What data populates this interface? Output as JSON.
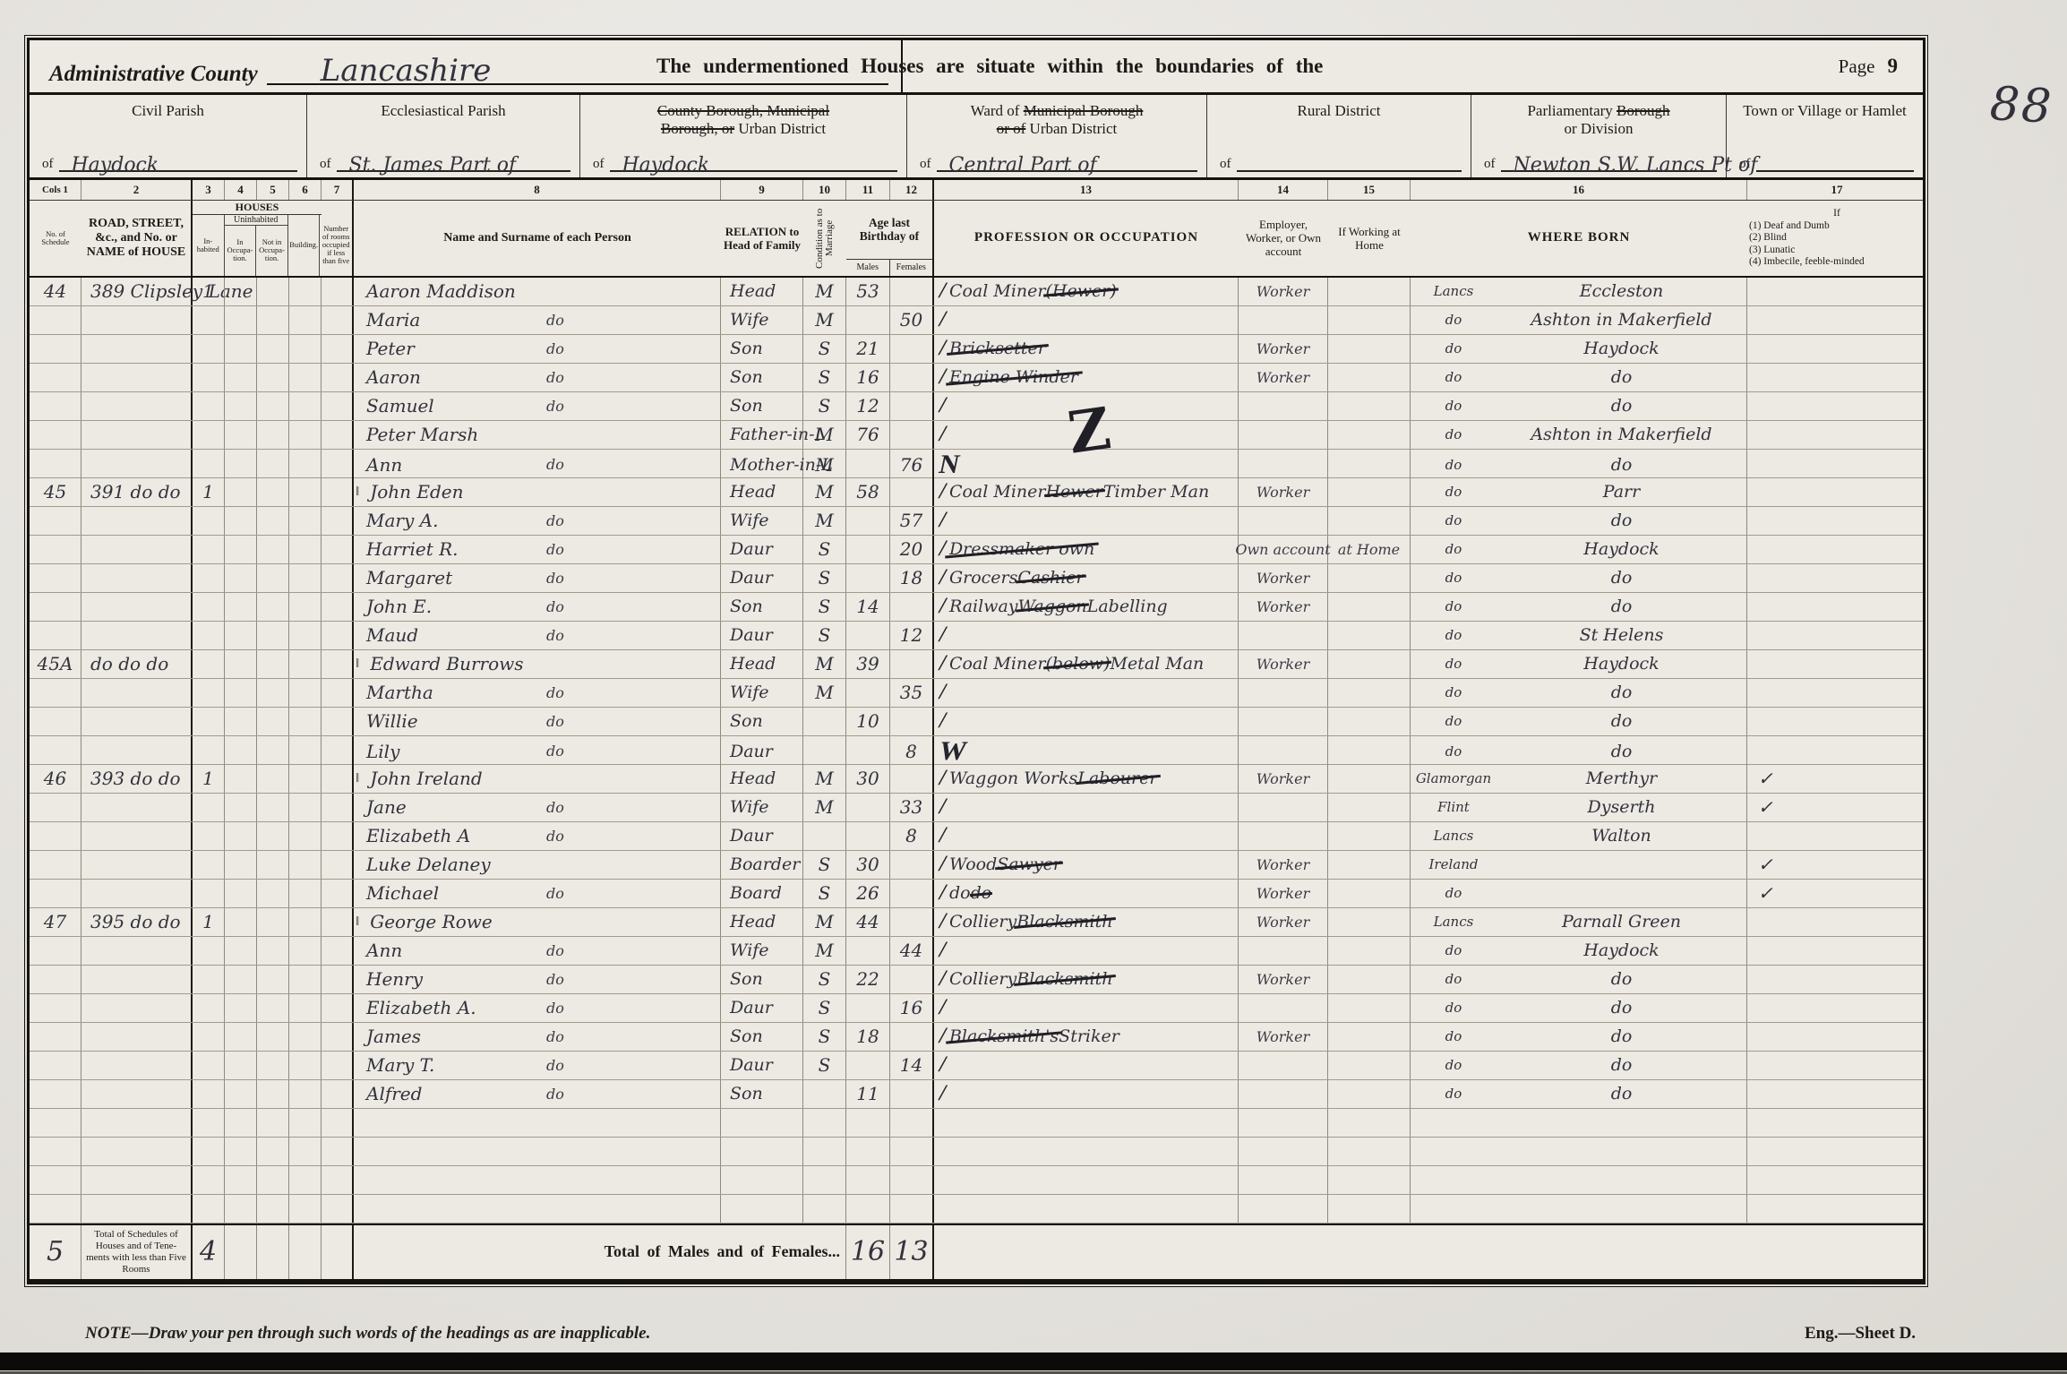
{
  "page": {
    "admin_county_label": "Administrative County",
    "admin_county_value": "Lancashire",
    "center_heading": "The undermentioned Houses are situate within the boundaries of the",
    "page_label": "Page",
    "page_number": "9",
    "stamp_number": "88",
    "of_label": "of",
    "note": "NOTE—Draw your pen through such words of the headings as are inapplicable.",
    "sheet_ref": "Eng.—Sheet D."
  },
  "districts": [
    {
      "lines": [
        [
          {
            "t": "Civil Parish",
            "s": false
          }
        ]
      ],
      "value": "Haydock"
    },
    {
      "lines": [
        [
          {
            "t": "Ecclesiastical Parish",
            "s": false
          }
        ]
      ],
      "value": "St. James Part of"
    },
    {
      "lines": [
        [
          {
            "t": "County Borough, Municipal",
            "s": true
          }
        ],
        [
          {
            "t": "Borough, or",
            "s": true
          },
          {
            "t": " Urban District",
            "s": false
          }
        ]
      ],
      "value": "Haydock"
    },
    {
      "lines": [
        [
          {
            "t": "Ward of ",
            "s": false
          },
          {
            "t": "Municipal Borough",
            "s": true
          }
        ],
        [
          {
            "t": "or of",
            "s": true
          },
          {
            "t": " Urban District",
            "s": false
          }
        ]
      ],
      "value": "Central Part of"
    },
    {
      "lines": [
        [
          {
            "t": "Rural District",
            "s": false
          }
        ]
      ],
      "value": ""
    },
    {
      "lines": [
        [
          {
            "t": "Parliamentary ",
            "s": false
          },
          {
            "t": "Borough",
            "s": true
          }
        ],
        [
          {
            "t": "or Division",
            "s": false
          }
        ]
      ],
      "value": "Newton S.W. Lancs Pt of"
    },
    {
      "lines": [
        [
          {
            "t": "Town or Village or Hamlet",
            "s": false
          }
        ]
      ],
      "value": ""
    }
  ],
  "columns": {
    "nums": [
      "Cols 1",
      "2",
      "3",
      "4",
      "5",
      "6",
      "7",
      "8",
      "9",
      "10",
      "11",
      "12",
      "13",
      "14",
      "15",
      "16",
      "17"
    ],
    "c1": "No. of Schedule",
    "c2": "ROAD, STREET, &c., and No. or NAME of HOUSE",
    "houses": "HOUSES",
    "inhabited": "In-habited",
    "uninhabited": "Uninhabited",
    "in_occupation": "In Occupa-tion.",
    "not_in_occupation": "Not in Occupa-tion.",
    "building": "Building.",
    "c7": "Number of rooms occupied if less than five",
    "c8": "Name and Surname of each Person",
    "c9": "RELATION to Head of Family",
    "c10": "Condition as to Marriage",
    "c11_12": "Age last Birthday of",
    "males": "Males",
    "females": "Females",
    "c13": "PROFESSION OR OCCUPATION",
    "c14": "Employer, Worker, or Own account",
    "c15": "If Working at Home",
    "c16": "WHERE BORN",
    "c17_title": "If",
    "c17_items": [
      "(1) Deaf and Dumb",
      "(2) Blind",
      "(3) Lunatic",
      "(4) Imbecile, feeble-minded"
    ]
  },
  "table": {
    "rows": [
      {
        "sch": "44",
        "street": "389 Clipsley Lane",
        "inh": "1",
        "name": "Aaron Maddison",
        "rel": "Head",
        "cond": "M",
        "am": "53",
        "af": "",
        "tick": "/",
        "occ": [
          {
            "t": "Coal Miner ",
            "s": false
          },
          {
            "t": "(Hewer)",
            "s": true
          }
        ],
        "emp": "Worker",
        "home": "",
        "bc": "Lancs",
        "bp": "Eccleston",
        "inf": ""
      },
      {
        "name": "Maria do",
        "rel": "Wife",
        "cond": "M",
        "af": "50",
        "tick": "/",
        "bc": "do",
        "bp": "Ashton in Makerfield"
      },
      {
        "name": "Peter do",
        "rel": "Son",
        "cond": "S",
        "am": "21",
        "tick": "/",
        "occ": [
          {
            "t": "Bricksetter",
            "s": true
          }
        ],
        "emp": "Worker",
        "bc": "do",
        "bp": "Haydock"
      },
      {
        "name": "Aaron do",
        "rel": "Son",
        "cond": "S",
        "am": "16",
        "tick": "/",
        "occ": [
          {
            "t": "Engine Winder",
            "s": true
          }
        ],
        "emp": "Worker",
        "bc": "do",
        "bp": "do"
      },
      {
        "name": "Samuel do",
        "rel": "Son",
        "cond": "S",
        "am": "12",
        "tick": "/",
        "bc": "do",
        "bp": "do"
      },
      {
        "name": "Peter Marsh",
        "rel": "Father-in-L",
        "cond": "M",
        "am": "76",
        "tick": "/",
        "zmark": true,
        "bc": "do",
        "bp": "Ashton in Makerfield"
      },
      {
        "name": "Ann do",
        "rel": "Mother-in-L",
        "cond": "M",
        "af": "76",
        "tick": "N",
        "bc": "do",
        "bp": "do"
      },
      {
        "sch": "45",
        "street": "391 do do",
        "inh": "1",
        "mark": "‖",
        "name": "John Eden",
        "rel": "Head",
        "cond": "M",
        "am": "58",
        "tick": "/",
        "occ": [
          {
            "t": "Coal Miner ",
            "s": false
          },
          {
            "t": "Hewer",
            "s": true
          },
          {
            "t": " Timber Man",
            "s": false
          }
        ],
        "emp": "Worker",
        "bc": "do",
        "bp": "Parr"
      },
      {
        "name": "Mary A. do",
        "rel": "Wife",
        "cond": "M",
        "af": "57",
        "tick": "/",
        "bc": "do",
        "bp": "do"
      },
      {
        "name": "Harriet R. do",
        "rel": "Daur",
        "cond": "S",
        "af": "20",
        "tick": "/",
        "occ": [
          {
            "t": "Dressmaker own",
            "s": true
          }
        ],
        "emp": "Own account",
        "home": "at Home",
        "bc": "do",
        "bp": "Haydock"
      },
      {
        "name": "Margaret do",
        "rel": "Daur",
        "cond": "S",
        "af": "18",
        "tick": "/",
        "occ": [
          {
            "t": "Grocers ",
            "s": false
          },
          {
            "t": "Cashier",
            "s": true
          }
        ],
        "emp": "Worker",
        "bc": "do",
        "bp": "do"
      },
      {
        "name": "John E. do",
        "rel": "Son",
        "cond": "S",
        "am": "14",
        "tick": "/",
        "occ": [
          {
            "t": "Railway ",
            "s": false
          },
          {
            "t": "Waggon ",
            "s": true
          },
          {
            "t": "Labelling",
            "s": false
          }
        ],
        "emp": "Worker",
        "bc": "do",
        "bp": "do"
      },
      {
        "name": "Maud do",
        "rel": "Daur",
        "cond": "S",
        "af": "12",
        "tick": "/",
        "bc": "do",
        "bp": "St Helens"
      },
      {
        "sch": "45A",
        "street": "do do do",
        "mark": "‖",
        "name": "Edward Burrows",
        "rel": "Head",
        "cond": "M",
        "am": "39",
        "tick": "/",
        "occ": [
          {
            "t": "Coal Miner ",
            "s": false
          },
          {
            "t": "(below)",
            "s": true
          },
          {
            "t": " Metal Man",
            "s": false
          }
        ],
        "emp": "Worker",
        "bc": "do",
        "bp": "Haydock"
      },
      {
        "name": "Martha do",
        "rel": "Wife",
        "cond": "M",
        "af": "35",
        "tick": "/",
        "bc": "do",
        "bp": "do"
      },
      {
        "name": "Willie do",
        "rel": "Son",
        "am": "10",
        "tick": "/",
        "bc": "do",
        "bp": "do"
      },
      {
        "name": "Lily do",
        "rel": "Daur",
        "af": "8",
        "tick": "W",
        "bc": "do",
        "bp": "do"
      },
      {
        "sch": "46",
        "street": "393 do do",
        "inh": "1",
        "mark": "‖",
        "name": "John Ireland",
        "rel": "Head",
        "cond": "M",
        "am": "30",
        "tick": "/",
        "occ": [
          {
            "t": "Waggon Works ",
            "s": false
          },
          {
            "t": "Labourer",
            "s": true
          }
        ],
        "emp": "Worker",
        "bc": "Glamorgan",
        "bp": "Merthyr",
        "inf": "✓"
      },
      {
        "name": "Jane do",
        "rel": "Wife",
        "cond": "M",
        "af": "33",
        "tick": "/",
        "bc": "Flint",
        "bp": "Dyserth",
        "inf": "✓"
      },
      {
        "name": "Elizabeth A do",
        "rel": "Daur",
        "af": "8",
        "tick": "/",
        "bc": "Lancs",
        "bp": "Walton"
      },
      {
        "name": "Luke Delaney",
        "rel": "Boarder",
        "cond": "S",
        "am": "30",
        "tick": "/",
        "occ": [
          {
            "t": "Wood ",
            "s": false
          },
          {
            "t": "Sawyer",
            "s": true
          }
        ],
        "emp": "Worker",
        "bc": "Ireland",
        "bp": "",
        "inf": "✓"
      },
      {
        "name": "Michael do",
        "rel": "Board",
        "cond": "S",
        "am": "26",
        "tick": "/",
        "occ": [
          {
            "t": "do ",
            "s": false
          },
          {
            "t": "do",
            "s": true
          }
        ],
        "emp": "Worker",
        "bc": "do",
        "bp": "",
        "inf": "✓"
      },
      {
        "sch": "47",
        "street": "395 do do",
        "inh": "1",
        "mark": "‖",
        "name": "George Rowe",
        "rel": "Head",
        "cond": "M",
        "am": "44",
        "tick": "/",
        "occ": [
          {
            "t": "Colliery ",
            "s": false
          },
          {
            "t": "Blacksmith",
            "s": true
          }
        ],
        "emp": "Worker",
        "bc": "Lancs",
        "bp": "Parnall Green"
      },
      {
        "name": "Ann do",
        "rel": "Wife",
        "cond": "M",
        "af": "44",
        "tick": "/",
        "bc": "do",
        "bp": "Haydock"
      },
      {
        "name": "Henry do",
        "rel": "Son",
        "cond": "S",
        "am": "22",
        "tick": "/",
        "occ": [
          {
            "t": "Colliery ",
            "s": false
          },
          {
            "t": "Blacksmith",
            "s": true
          }
        ],
        "emp": "Worker",
        "bc": "do",
        "bp": "do"
      },
      {
        "name": "Elizabeth A. do",
        "rel": "Daur",
        "cond": "S",
        "af": "16",
        "tick": "/",
        "bc": "do",
        "bp": "do"
      },
      {
        "name": "James do",
        "rel": "Son",
        "cond": "S",
        "am": "18",
        "tick": "/",
        "occ": [
          {
            "t": "Blacksmith's ",
            "s": true
          },
          {
            "t": "Striker",
            "s": false
          }
        ],
        "emp": "Worker",
        "bc": "do",
        "bp": "do"
      },
      {
        "name": "Mary T. do",
        "rel": "Daur",
        "cond": "S",
        "af": "14",
        "tick": "/",
        "bc": "do",
        "bp": "do"
      },
      {
        "name": "Alfred do",
        "rel": "Son",
        "am": "11",
        "tick": "/",
        "bc": "do",
        "bp": "do"
      },
      {},
      {},
      {},
      {}
    ],
    "totals": {
      "schedules": "5",
      "houses_label": "Total of Schedules of Houses and of Tene- ments with less than Five Rooms",
      "houses": "4",
      "mf_label": "Total of Males and of Females...",
      "males": "16",
      "females": "13"
    }
  }
}
